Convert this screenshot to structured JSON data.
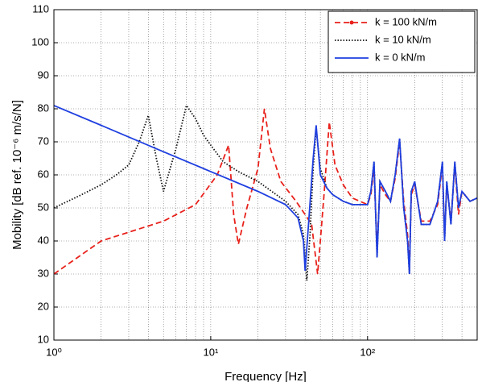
{
  "chart_data": {
    "type": "line",
    "xlabel": "Frequency [Hz]",
    "ylabel": "Mobility [dB ref. 10⁻⁶ m/s/N]",
    "xscale": "log",
    "xlim": [
      1,
      500
    ],
    "ylim": [
      10,
      110
    ],
    "xticks": [
      {
        "value": 1,
        "label": "10⁰"
      },
      {
        "value": 10,
        "label": "10¹"
      },
      {
        "value": 100,
        "label": "10²"
      }
    ],
    "xminorticks": [
      2,
      3,
      4,
      5,
      6,
      7,
      8,
      9,
      20,
      30,
      40,
      50,
      60,
      70,
      80,
      90,
      200,
      300,
      400
    ],
    "yticks": [
      10,
      20,
      30,
      40,
      50,
      60,
      70,
      80,
      90,
      100,
      110
    ],
    "grid": true,
    "legend": "upper right",
    "series": [
      {
        "name": "k = 100 kN/m",
        "color": "#e8211b",
        "linestyle": "dashed",
        "x": [
          1,
          2,
          5,
          8,
          11,
          13,
          14,
          15,
          17,
          20,
          22,
          24,
          28,
          35,
          40,
          44,
          48,
          50,
          53,
          57,
          62,
          70,
          80,
          100,
          105,
          110,
          115,
          120,
          130,
          140,
          150,
          160,
          170,
          180,
          185,
          190,
          200,
          220,
          250,
          280,
          300,
          310,
          320,
          340,
          360,
          380,
          400,
          450,
          500
        ],
        "values": [
          30,
          40,
          46,
          51,
          60,
          69,
          48,
          39,
          50,
          62,
          80,
          68,
          58,
          52,
          48,
          45,
          30,
          40,
          55,
          76,
          63,
          57,
          53,
          51,
          54,
          62,
          37,
          57,
          54,
          52,
          59,
          70,
          52,
          42,
          31,
          54,
          57,
          46,
          46,
          51,
          63,
          41,
          57,
          46,
          63,
          48,
          55,
          52,
          53
        ]
      },
      {
        "name": "k = 10 kN/m",
        "color": "#111111",
        "linestyle": "dotted",
        "x": [
          1,
          1.5,
          2,
          2.5,
          3,
          3.5,
          4,
          4.5,
          5,
          6,
          7,
          8,
          9,
          10,
          12,
          15,
          20,
          30,
          36,
          39,
          41,
          43,
          45,
          47,
          50,
          55,
          60,
          70,
          80,
          100,
          105,
          110,
          115,
          120,
          130,
          140,
          150,
          160,
          170,
          180,
          185,
          190,
          200,
          220,
          250,
          280,
          300,
          310,
          320,
          340,
          360,
          380,
          400,
          450,
          500
        ],
        "values": [
          50,
          54,
          57,
          60,
          63,
          70,
          78,
          65,
          55,
          68,
          81,
          77,
          72,
          69,
          64,
          61,
          58,
          52,
          48,
          42,
          28,
          42,
          62,
          74,
          62,
          56,
          54,
          52,
          51,
          51,
          55,
          64,
          35,
          58,
          55,
          52,
          60,
          71,
          50,
          40,
          30,
          55,
          58,
          45,
          45,
          52,
          64,
          40,
          58,
          45,
          64,
          50,
          55,
          52,
          53
        ]
      },
      {
        "name": "k = 0 kN/m",
        "color": "#1f3fe0",
        "linestyle": "solid",
        "x": [
          1,
          2,
          5,
          10,
          20,
          30,
          36,
          39,
          40,
          42,
          45,
          47,
          50,
          55,
          60,
          70,
          80,
          100,
          105,
          110,
          115,
          120,
          130,
          140,
          150,
          160,
          170,
          180,
          185,
          190,
          200,
          220,
          250,
          280,
          300,
          310,
          320,
          340,
          360,
          380,
          400,
          450,
          500
        ],
        "values": [
          81,
          75,
          67,
          61,
          55,
          51,
          47,
          40,
          31,
          45,
          65,
          75,
          60,
          56,
          54,
          52,
          51,
          51,
          55,
          64,
          35,
          58,
          55,
          52,
          60,
          71,
          50,
          40,
          30,
          55,
          58,
          45,
          45,
          52,
          64,
          40,
          58,
          45,
          64,
          50,
          55,
          52,
          53
        ]
      }
    ]
  }
}
